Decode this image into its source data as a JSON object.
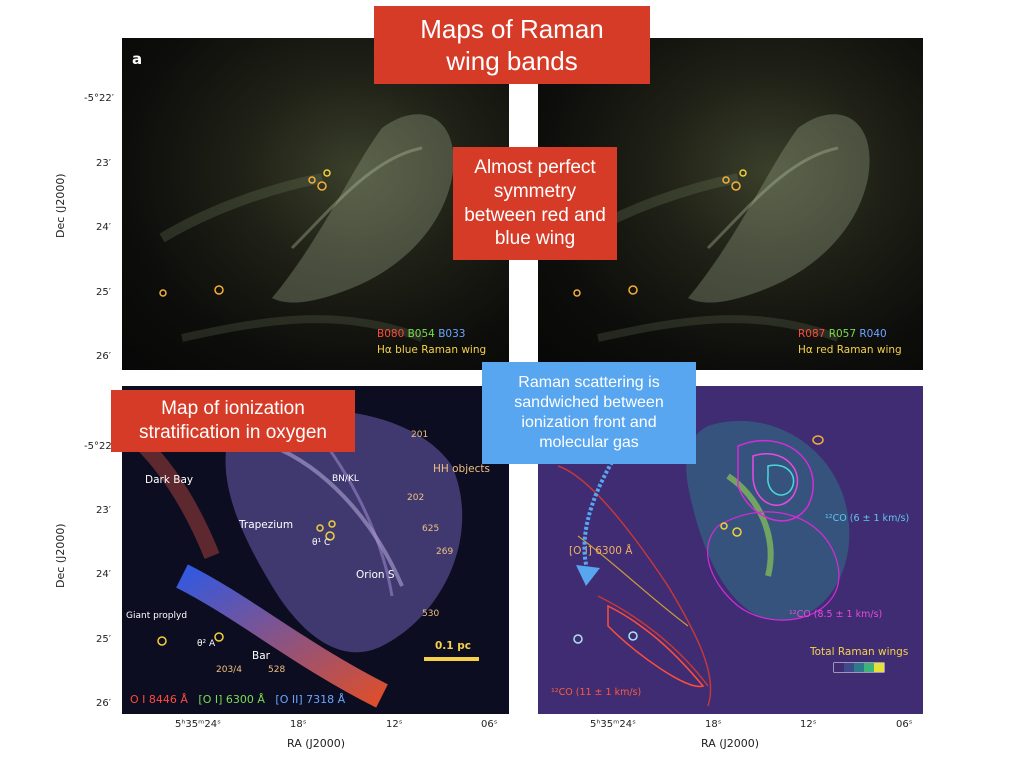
{
  "slide": {
    "title_box": "Maps of Raman wing bands",
    "callout_symmetry": "Almost perfect symmetry between red and blue wing",
    "callout_ionization": "Map of ionization stratification in oxygen",
    "callout_raman": "Raman scattering is sandwiched between ionization front and molecular gas"
  },
  "figure": {
    "panel_letter": "a",
    "top_left": {
      "b080": "B080",
      "b054": "B054",
      "b033": "B033",
      "caption": "Hα blue Raman wing"
    },
    "top_right": {
      "r087": "R087",
      "r057": "R057",
      "r040": "R040",
      "caption": "Hα red Raman wing"
    },
    "bottom_left": {
      "labels": [
        "Dark Bay",
        "BN/KL",
        "Trapezium",
        "θ¹ C",
        "Orion S",
        "Giant proplyd",
        "θ² A",
        "Bar",
        "203/4",
        "528",
        "201",
        "202",
        "625",
        "269",
        "530",
        "HH objects"
      ],
      "scalebar": "0.1 pc",
      "oi8446": "O I 8446 Å",
      "oi6300": "[O I] 6300 Å",
      "oii7318": "[O II] 7318 Å"
    },
    "bottom_right": {
      "oi6300": "[O I] 6300 Å",
      "co_a": "¹²CO  (6 ± 1 km/s)",
      "co_b": "¹²CO  (8.5 ± 1 km/s)",
      "co_c": "¹²CO  (11 ± 1 km/s)",
      "total": "Total Raman wings"
    },
    "dec_ticks": [
      "-5°22′",
      "23′",
      "24′",
      "25′",
      "26′"
    ],
    "ra_ticks": [
      "5ʰ35ᵐ24ˢ",
      "18ˢ",
      "12ˢ",
      "06ˢ"
    ],
    "ylabel": "Dec (J2000)",
    "xlabel": "RA (J2000)"
  },
  "colors": {
    "callout_red": "#d63b27",
    "callout_blue": "#58a6f0",
    "caption_yellow": "#f5d14a",
    "label_red": "#ff4a3d",
    "label_green": "#7bdc4f",
    "label_blue": "#6aa6ff"
  }
}
